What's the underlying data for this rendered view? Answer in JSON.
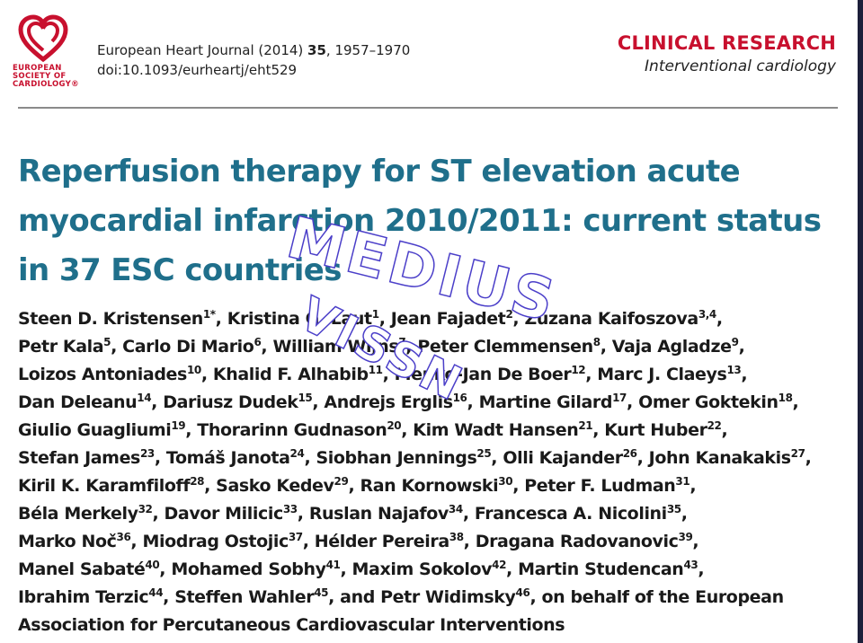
{
  "logo": {
    "lines": [
      "EUROPEAN",
      "SOCIETY OF",
      "CARDIOLOGY®"
    ]
  },
  "citation": {
    "journal": "European Heart Journal (2014) ",
    "volume": "35",
    "pages": ", 1957–1970",
    "doi": "doi:10.1093/eurheartj/eht529"
  },
  "section": {
    "main": "CLINICAL RESEARCH",
    "sub": "Interventional cardiology"
  },
  "title": "Reperfusion therapy for ST elevation acute myocardial infarction 2010/2011: current status in 37 ESC countries",
  "watermark": {
    "line1": "MEDIUS",
    "line2": "VISSN"
  },
  "authors": [
    [
      [
        "Steen D. Kristensen",
        "1*"
      ],
      [
        "Kristina G. Laut",
        "1"
      ],
      [
        "Jean Fajadet",
        "2"
      ],
      [
        "Zuzana Kaifoszova",
        "3,4"
      ]
    ],
    [
      [
        "Petr Kala",
        "5"
      ],
      [
        "Carlo Di Mario",
        "6"
      ],
      [
        "William Wijns",
        "7"
      ],
      [
        "Peter Clemmensen",
        "8"
      ],
      [
        "Vaja Agladze",
        "9"
      ]
    ],
    [
      [
        "Loizos Antoniades",
        "10"
      ],
      [
        "Khalid F. Alhabib",
        "11"
      ],
      [
        "Menko-Jan De Boer",
        "12"
      ],
      [
        "Marc J. Claeys",
        "13"
      ]
    ],
    [
      [
        "Dan Deleanu",
        "14"
      ],
      [
        "Dariusz Dudek",
        "15"
      ],
      [
        "Andrejs Erglis",
        "16"
      ],
      [
        "Martine Gilard",
        "17"
      ],
      [
        "Omer Goktekin",
        "18"
      ]
    ],
    [
      [
        "Giulio Guagliumi",
        "19"
      ],
      [
        "Thorarinn Gudnason",
        "20"
      ],
      [
        "Kim Wadt Hansen",
        "21"
      ],
      [
        "Kurt Huber",
        "22"
      ]
    ],
    [
      [
        "Stefan James",
        "23"
      ],
      [
        "Tomáš Janota",
        "24"
      ],
      [
        "Siobhan Jennings",
        "25"
      ],
      [
        "Olli Kajander",
        "26"
      ],
      [
        "John Kanakakis",
        "27"
      ]
    ],
    [
      [
        "Kiril K. Karamfiloff",
        "28"
      ],
      [
        "Sasko Kedev",
        "29"
      ],
      [
        "Ran Kornowski",
        "30"
      ],
      [
        "Peter F. Ludman",
        "31"
      ]
    ],
    [
      [
        "Béla Merkely",
        "32"
      ],
      [
        "Davor Milicic",
        "33"
      ],
      [
        "Ruslan Najafov",
        "34"
      ],
      [
        "Francesca A. Nicolini",
        "35"
      ]
    ],
    [
      [
        "Marko Noč",
        "36"
      ],
      [
        "Miodrag Ostojic",
        "37"
      ],
      [
        "Hélder Pereira",
        "38"
      ],
      [
        "Dragana Radovanovic",
        "39"
      ]
    ],
    [
      [
        "Manel Sabaté",
        "40"
      ],
      [
        "Mohamed Sobhy",
        "41"
      ],
      [
        "Maxim Sokolov",
        "42"
      ],
      [
        "Martin Studencan",
        "43"
      ]
    ],
    [
      [
        "Ibrahim Terzic",
        "44"
      ],
      [
        "Steffen Wahler",
        "45"
      ],
      [
        "and Petr Widimsky",
        "46"
      ]
    ],
    [
      [
        "Association for Percutaneous Cardiovascular Interventions",
        ""
      ]
    ]
  ],
  "authors_tail": [
    {
      "line": 10,
      "text": ", on behalf of the European"
    }
  ]
}
